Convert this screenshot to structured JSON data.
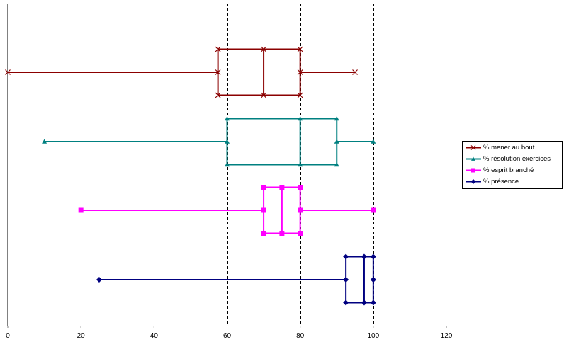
{
  "chart_data": {
    "type": "box",
    "orientation": "horizontal",
    "title": "",
    "xlabel": "",
    "ylabel": "",
    "xlim": [
      0,
      120
    ],
    "x_ticks": [
      0,
      20,
      40,
      60,
      80,
      100,
      120
    ],
    "grid": true,
    "legend_position": "right",
    "series": [
      {
        "name": "% mener au bout",
        "color": "#8B0000",
        "marker": "x",
        "min": 0,
        "q1": 57.5,
        "median": 70,
        "q3": 80,
        "max": 95
      },
      {
        "name": "% résolution exercices",
        "color": "#008080",
        "marker": "triangle",
        "min": 10,
        "q1": 60,
        "median": 80,
        "q3": 90,
        "max": 100
      },
      {
        "name": "% esprit branché",
        "color": "#FF00FF",
        "marker": "square",
        "min": 20,
        "q1": 70,
        "median": 75,
        "q3": 80,
        "max": 100
      },
      {
        "name": "% présence",
        "color": "#000080",
        "marker": "diamond",
        "min": 25,
        "q1": 92.5,
        "median": 97.5,
        "q3": 100,
        "max": 100
      }
    ]
  }
}
